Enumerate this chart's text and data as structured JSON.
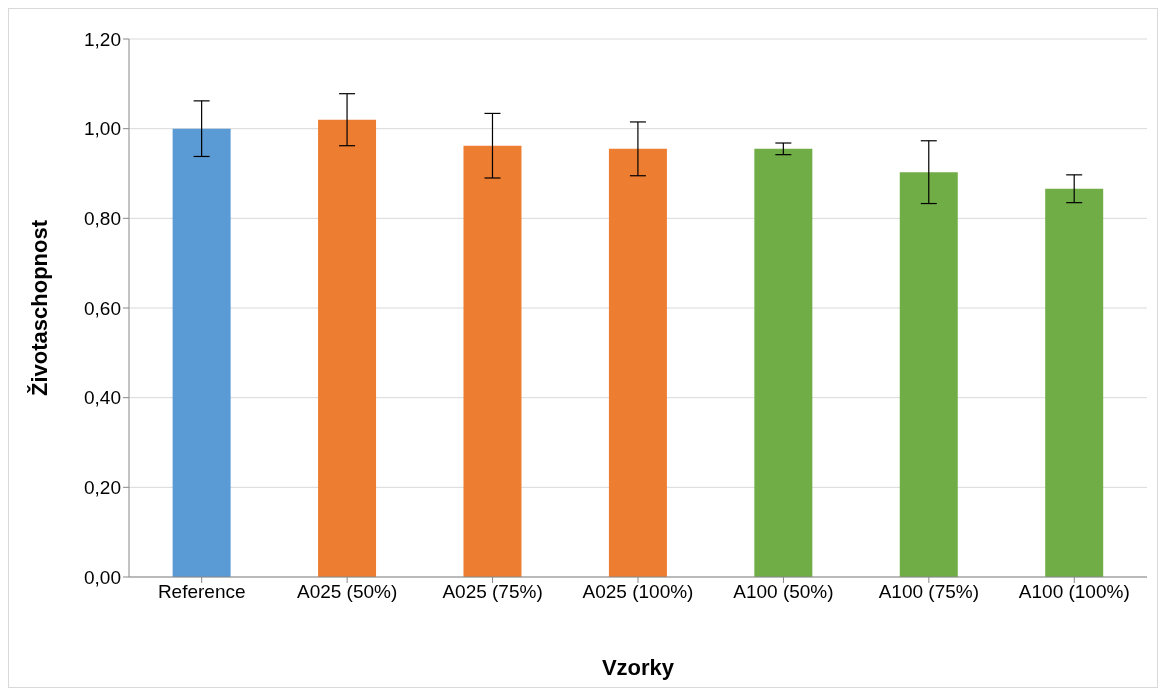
{
  "chart_data": {
    "type": "bar",
    "xlabel": "Vzorky",
    "ylabel": "Životaschopnost",
    "categories": [
      "Reference",
      "A025 (50%)",
      "A025 (75%)",
      "A025 (100%)",
      "A100 (50%)",
      "A100 (75%)",
      "A100 (100%)"
    ],
    "values": [
      1.0,
      1.02,
      0.962,
      0.955,
      0.955,
      0.903,
      0.866
    ],
    "errors": [
      0.062,
      0.058,
      0.072,
      0.06,
      0.013,
      0.07,
      0.031
    ],
    "colors": [
      "#5b9bd5",
      "#ed7d31",
      "#ed7d31",
      "#ed7d31",
      "#70ad47",
      "#70ad47",
      "#70ad47"
    ],
    "ylim": [
      0,
      1.2
    ],
    "yticks": [
      {
        "value": 0,
        "label": "0,00"
      },
      {
        "value": 0.2,
        "label": "0,20"
      },
      {
        "value": 0.4,
        "label": "0,40"
      },
      {
        "value": 0.6,
        "label": "0,60"
      },
      {
        "value": 0.8,
        "label": "0,80"
      },
      {
        "value": 1.0,
        "label": "1,00"
      },
      {
        "value": 1.2,
        "label": "1,20"
      }
    ],
    "grid": "y",
    "legend": false
  }
}
